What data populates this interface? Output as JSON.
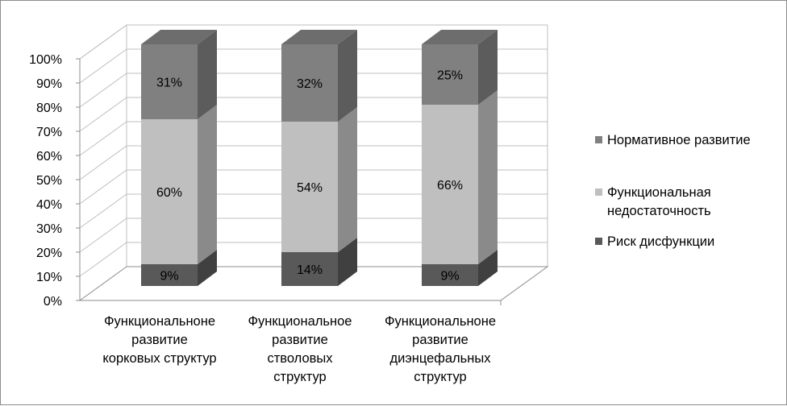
{
  "chart_data": {
    "type": "bar",
    "stacked": true,
    "percent_stacked": true,
    "three_d": true,
    "title": "",
    "xlabel": "",
    "ylabel": "",
    "ylim": [
      0,
      100
    ],
    "y_ticks": [
      "0%",
      "10%",
      "20%",
      "30%",
      "40%",
      "50%",
      "60%",
      "70%",
      "80%",
      "90%",
      "100%"
    ],
    "grid": true,
    "legend_position": "right",
    "categories": [
      [
        "Функциональноне",
        "развитие",
        "корковых структур"
      ],
      [
        "Функциональное",
        "развитие",
        "стволовых",
        "структур"
      ],
      [
        "Функциональноне",
        "развитие",
        "диэнцефальных",
        "структур"
      ]
    ],
    "series": [
      {
        "name": "Риск дисфункции",
        "values": [
          9,
          14,
          9
        ],
        "labels": [
          "9%",
          "14%",
          "9%"
        ],
        "color": "#595959"
      },
      {
        "name": "Функциональная недостаточность",
        "values": [
          60,
          54,
          66
        ],
        "labels": [
          "60%",
          "54%",
          "66%"
        ],
        "color": "#bfbfbf"
      },
      {
        "name": "Нормативное развитие",
        "values": [
          31,
          32,
          25
        ],
        "labels": [
          "31%",
          "32%",
          "25%"
        ],
        "color": "#808080"
      }
    ],
    "legend_order": [
      2,
      1,
      0
    ],
    "legend_lines": [
      [
        "Нормативное развитие"
      ],
      [
        "Функциональная",
        "недостаточность"
      ],
      [
        "Риск дисфункции"
      ]
    ]
  }
}
